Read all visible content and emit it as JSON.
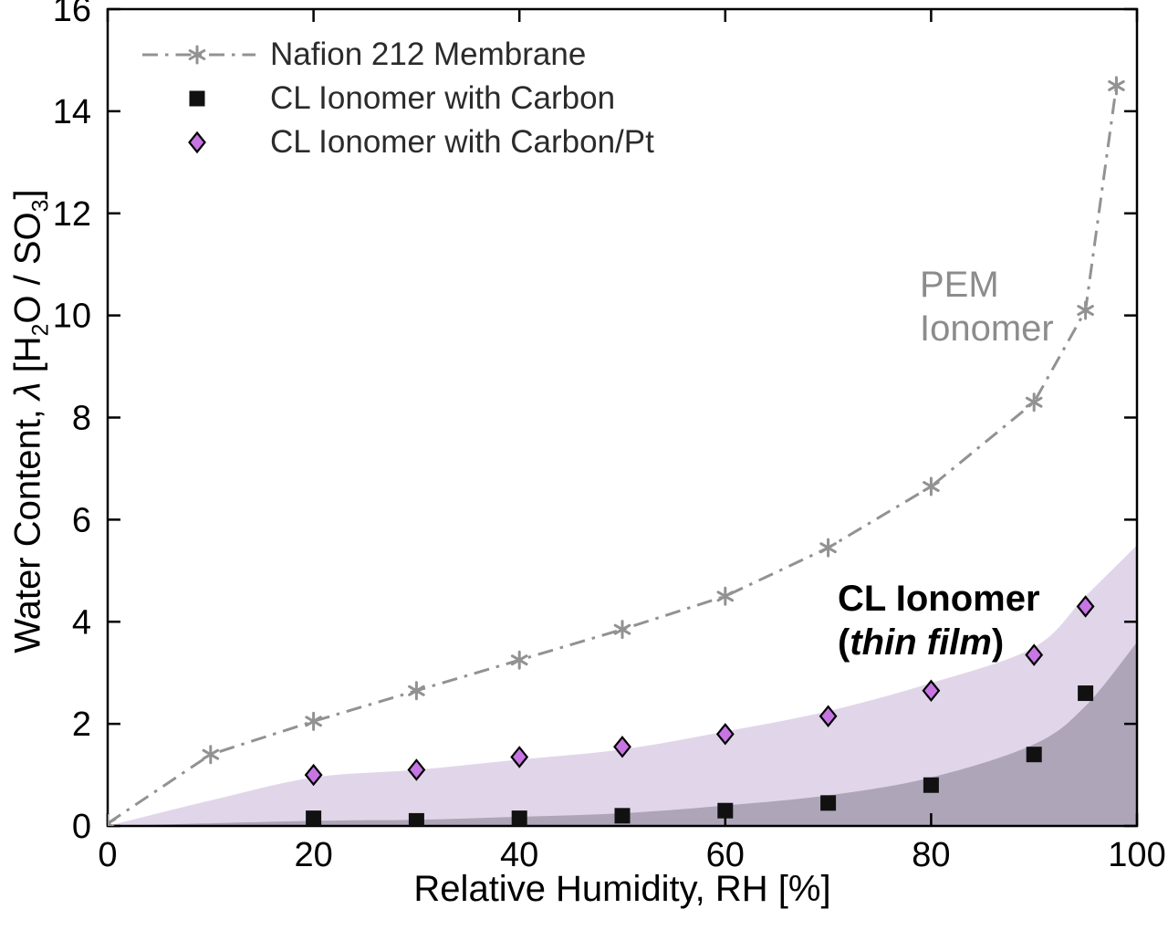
{
  "chart_data": {
    "type": "scatter",
    "title": "",
    "xlabel": "Relative Humidity, RH [%]",
    "ylabel": "Water Content, λ [H2O / SO3]",
    "ylabel_parts": {
      "pre": "Water Content,",
      "lambda": "λ",
      "open": "[H",
      "sub_h": "2",
      "mid": "O / SO",
      "sub_s": "3",
      "close": "]"
    },
    "xlim": [
      0,
      100
    ],
    "ylim": [
      0,
      16
    ],
    "x_ticks": [
      0,
      20,
      40,
      60,
      80,
      100
    ],
    "y_ticks": [
      0,
      2,
      4,
      6,
      8,
      10,
      12,
      14,
      16
    ],
    "grid": false,
    "frame": true,
    "legend_position": "top-left",
    "series": [
      {
        "name": "Nafion 212 Membrane",
        "marker": "asterisk",
        "line": "dash-dot",
        "color": "#929292",
        "points": [
          [
            0,
            0.05
          ],
          [
            10,
            1.4
          ],
          [
            20,
            2.05
          ],
          [
            30,
            2.65
          ],
          [
            40,
            3.25
          ],
          [
            50,
            3.85
          ],
          [
            60,
            4.5
          ],
          [
            70,
            5.45
          ],
          [
            80,
            6.65
          ],
          [
            90,
            8.3
          ],
          [
            95,
            10.1
          ],
          [
            98,
            14.5
          ]
        ]
      },
      {
        "name": "CL Ionomer with Carbon",
        "marker": "square",
        "line": "none",
        "color": "#111111",
        "points": [
          [
            20,
            0.15
          ],
          [
            30,
            0.1
          ],
          [
            40,
            0.15
          ],
          [
            50,
            0.2
          ],
          [
            60,
            0.3
          ],
          [
            70,
            0.45
          ],
          [
            80,
            0.8
          ],
          [
            90,
            1.4
          ],
          [
            95,
            2.6
          ]
        ]
      },
      {
        "name": "CL Ionomer with Carbon/Pt",
        "marker": "diamond",
        "line": "none",
        "color": "#c775e3",
        "edge_color": "#000000",
        "points": [
          [
            20,
            1.0
          ],
          [
            30,
            1.1
          ],
          [
            40,
            1.35
          ],
          [
            50,
            1.55
          ],
          [
            60,
            1.8
          ],
          [
            70,
            2.15
          ],
          [
            80,
            2.65
          ],
          [
            90,
            3.35
          ],
          [
            95,
            4.3
          ]
        ]
      }
    ],
    "bands": [
      {
        "name": "cl-ionomer-thin-film-region",
        "color": "rgba(177,148,198,0.38)",
        "upper": [
          [
            0,
            0
          ],
          [
            10,
            0.5
          ],
          [
            20,
            0.95
          ],
          [
            30,
            1.1
          ],
          [
            40,
            1.3
          ],
          [
            50,
            1.5
          ],
          [
            60,
            1.85
          ],
          [
            70,
            2.25
          ],
          [
            80,
            2.8
          ],
          [
            90,
            3.5
          ],
          [
            95,
            4.5
          ],
          [
            100,
            5.5
          ]
        ],
        "lower": 0
      },
      {
        "name": "carbon-ionomer-region",
        "color": "rgba(104,99,116,0.42)",
        "upper": [
          [
            0,
            0
          ],
          [
            20,
            0.1
          ],
          [
            30,
            0.12
          ],
          [
            40,
            0.18
          ],
          [
            50,
            0.25
          ],
          [
            60,
            0.4
          ],
          [
            70,
            0.6
          ],
          [
            80,
            0.95
          ],
          [
            90,
            1.6
          ],
          [
            95,
            2.35
          ],
          [
            100,
            3.6
          ]
        ],
        "lower": 0
      }
    ],
    "annotations": {
      "pem_ionomer": {
        "line1": "PEM",
        "line2": "Ionomer",
        "color": "#8c8c8c",
        "x": 79,
        "y": 10.6
      },
      "cl_thin_film": {
        "line1": "CL Ionomer",
        "line2_open": "(",
        "line2_italic": "thin film",
        "line2_close": ")",
        "color": "#000000",
        "x": 71,
        "y": 4.6
      }
    }
  }
}
